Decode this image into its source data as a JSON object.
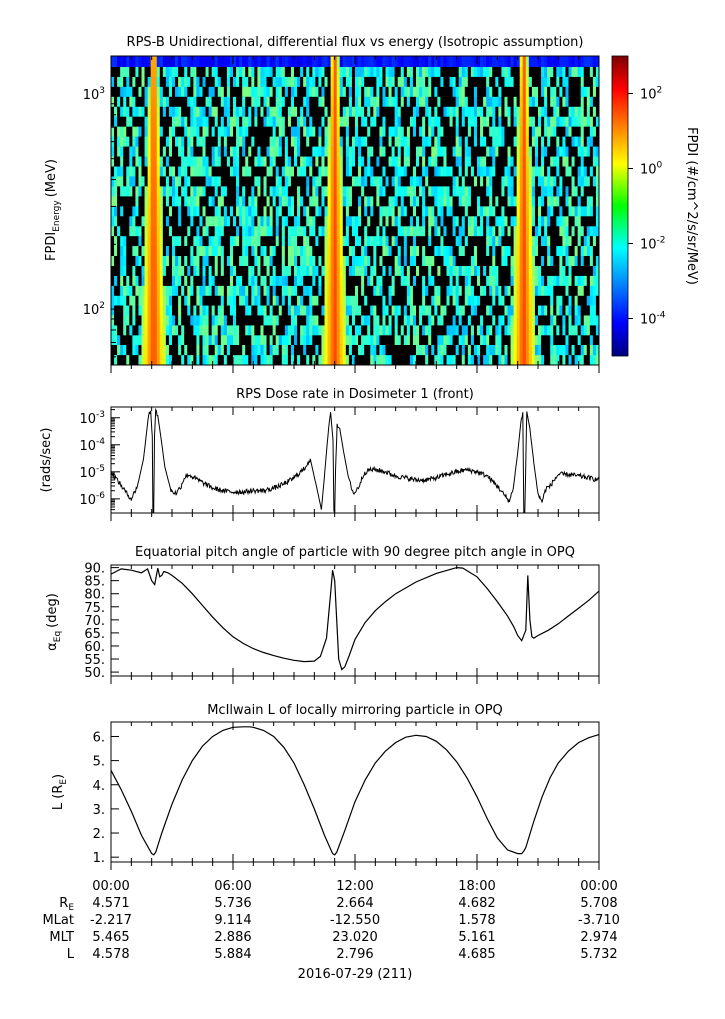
{
  "chart_data": [
    {
      "type": "heatmap",
      "title": "RPS-B  Unidirectional, differential flux vs energy (Isotropic assumption)",
      "ylabel_main": "FPDI",
      "ylabel_sub": "Energy",
      "ylabel_unit": "(MeV)",
      "y_scale": "log",
      "ylim": [
        55,
        1500
      ],
      "yticks": [
        {
          "value": 100,
          "base": "10",
          "exp": "2"
        },
        {
          "value": 1000,
          "base": "10",
          "exp": "3"
        }
      ],
      "colorbar": {
        "label": "FPDI (#/cm^2/s/sr/MeV)",
        "scale": "log",
        "range": [
          1e-05,
          1000.0
        ],
        "ticks": [
          {
            "value": 100,
            "base": "10",
            "exp": "2"
          },
          {
            "value": 1,
            "base": "10",
            "exp": "0"
          },
          {
            "value": 0.01,
            "base": "10",
            "exp": "-2"
          },
          {
            "value": 0.0001,
            "base": "10",
            "exp": "-4"
          }
        ]
      },
      "energy_channels_mev": [
        58,
        65,
        72,
        80,
        89,
        99,
        110,
        122,
        136,
        151,
        168,
        187,
        208,
        231,
        257,
        286,
        318,
        354,
        394,
        438,
        487,
        542,
        603,
        671,
        746,
        830,
        923,
        1027,
        1142,
        1270,
        1413
      ],
      "belt_crossings_hours": [
        2.1,
        11.0,
        20.3
      ],
      "belt_peak_log_flux": 1.5,
      "background_log_flux_range": [
        -2.6,
        -1.0
      ]
    },
    {
      "type": "line",
      "title": "RPS  Dose rate in Dosimeter 1 (front)",
      "ylabel": "(rads/sec)",
      "y_scale": "log",
      "ylim": [
        3e-07,
        0.0025
      ],
      "yticks": [
        {
          "value": 0.001,
          "base": "10",
          "exp": "-3"
        },
        {
          "value": 0.0001,
          "base": "10",
          "exp": "-4"
        },
        {
          "value": 1e-05,
          "base": "10",
          "exp": "-5"
        },
        {
          "value": 1e-06,
          "base": "10",
          "exp": "-6"
        }
      ],
      "series": [
        {
          "x_hours": [
            0,
            0.4,
            0.8,
            1.0,
            1.3,
            1.6,
            1.75,
            1.85,
            1.95,
            2.03,
            2.06,
            2.1,
            2.14,
            2.2,
            2.3,
            2.45,
            2.65,
            2.95,
            3.2,
            3.45,
            3.6,
            3.8,
            4.1,
            4.5,
            5.0,
            5.5,
            6.0,
            6.5,
            7.0,
            7.5,
            8.0,
            8.5,
            9.0,
            9.5,
            9.8,
            10.1,
            10.35,
            10.55,
            10.7,
            10.8,
            10.92,
            10.96,
            11.0,
            11.04,
            11.12,
            11.25,
            11.45,
            11.7,
            11.95,
            12.2,
            12.45,
            12.7,
            13.0,
            13.5,
            14.0,
            14.5,
            15.0,
            15.5,
            16.0,
            16.5,
            17.0,
            17.5,
            18.0,
            18.5,
            19.0,
            19.3,
            19.6,
            19.8,
            20.0,
            20.15,
            20.25,
            20.3,
            20.35,
            20.45,
            20.6,
            20.8,
            21.0,
            21.2,
            21.4,
            21.6,
            21.8,
            22.0,
            22.5,
            23.0,
            23.5,
            24.0
          ],
          "y": [
            1e-05,
            4e-06,
            1.5e-06,
            1e-06,
            3e-06,
            3e-05,
            0.0003,
            0.0013,
            0.0018,
            0.0002,
            3e-07,
            3e-07,
            0.0002,
            0.0018,
            0.0012,
            0.0002,
            1.5e-05,
            2e-06,
            1.6e-06,
            3e-06,
            6e-06,
            8e-06,
            6e-06,
            4e-06,
            2.5e-06,
            2e-06,
            1.8e-06,
            1.8e-06,
            2e-06,
            2e-06,
            2.5e-06,
            3.5e-06,
            6e-06,
            1.3e-05,
            3e-05,
            3e-06,
            4e-07,
            2e-05,
            0.0004,
            0.0016,
            0.00015,
            3e-07,
            3e-07,
            1e-05,
            0.0005,
            0.0004,
            5e-05,
            5e-06,
            1.5e-06,
            3e-06,
            9e-06,
            1.2e-05,
            1.2e-05,
            1e-05,
            7e-06,
            6e-06,
            5e-06,
            5e-06,
            6e-06,
            8e-06,
            1e-05,
            1.2e-05,
            1e-05,
            7e-06,
            3e-06,
            1.5e-06,
            8e-07,
            3e-06,
            5e-05,
            0.0006,
            0.0016,
            3e-07,
            3e-07,
            0.0017,
            0.0004,
            2e-05,
            1.5e-06,
            8e-07,
            2.5e-06,
            3e-06,
            5e-06,
            8e-06,
            8e-06,
            7e-06,
            6e-06,
            5e-06
          ]
        }
      ]
    },
    {
      "type": "line",
      "title": "Equatorial pitch angle of particle with 90 degree pitch angle in OPQ",
      "ylabel_main": "α",
      "ylabel_sub": "Eq",
      "ylabel_unit": "(deg)",
      "ylim": [
        48.5,
        91
      ],
      "yticks": [
        50,
        55,
        60,
        65,
        70,
        75,
        80,
        85,
        90
      ],
      "ytick_labels": [
        "50.",
        "55.",
        "60.",
        "65.",
        "70.",
        "75.",
        "80.",
        "85.",
        "90."
      ],
      "series": [
        {
          "x_hours": [
            0,
            0.5,
            1.0,
            1.5,
            1.8,
            2.0,
            2.15,
            2.3,
            2.4,
            2.5,
            2.6,
            2.8,
            3.0,
            3.5,
            4.0,
            4.5,
            5.0,
            5.5,
            6.0,
            6.5,
            7.0,
            7.5,
            8.0,
            8.5,
            9.0,
            9.5,
            10.0,
            10.3,
            10.6,
            10.8,
            10.9,
            11.0,
            11.1,
            11.2,
            11.35,
            11.5,
            11.7,
            12.0,
            12.5,
            13.0,
            13.5,
            14.0,
            15.0,
            16.0,
            17.0,
            17.3,
            18.0,
            18.5,
            19.0,
            19.5,
            19.8,
            20.0,
            20.2,
            20.4,
            20.5,
            20.6,
            20.7,
            20.8,
            21.0,
            21.5,
            22.0,
            22.5,
            23.0,
            23.5,
            24.0
          ],
          "y": [
            87.5,
            89.5,
            89.0,
            88.0,
            89.5,
            85.0,
            83.5,
            89.8,
            86.5,
            87.0,
            88.5,
            88.0,
            87.0,
            84.0,
            80.0,
            75.5,
            71.0,
            67.0,
            63.5,
            61.0,
            59.0,
            57.5,
            56.3,
            55.3,
            54.5,
            54.0,
            54.2,
            56.0,
            63.0,
            80.0,
            89.0,
            85.0,
            70.0,
            55.0,
            51.0,
            52.0,
            56.0,
            62.5,
            69.0,
            73.5,
            77.0,
            80.0,
            84.5,
            87.8,
            90.0,
            89.8,
            86.5,
            82.0,
            77.0,
            71.5,
            67.5,
            64.0,
            62.0,
            66.0,
            87.0,
            70.0,
            63.5,
            63.0,
            64.0,
            66.0,
            68.5,
            71.5,
            74.5,
            77.5,
            81.0
          ]
        }
      ]
    },
    {
      "type": "line",
      "title": "McIlwain L of locally mirroring particle in OPQ",
      "ylabel_main": "L (R",
      "ylabel_sub": "E",
      "ylabel_unit": ")",
      "ylim": [
        0.8,
        6.6
      ],
      "yticks": [
        1,
        2,
        3,
        4,
        5,
        6
      ],
      "ytick_labels": [
        "1.",
        "2.",
        "3.",
        "4.",
        "5.",
        "6."
      ],
      "series": [
        {
          "x_hours": [
            0,
            0.5,
            1.0,
            1.5,
            2.0,
            2.1,
            2.2,
            2.5,
            3.0,
            3.5,
            4.0,
            4.5,
            5.0,
            5.5,
            6.0,
            6.5,
            6.8,
            7.0,
            7.5,
            8.0,
            8.5,
            9.0,
            9.5,
            10.0,
            10.5,
            10.9,
            11.0,
            11.1,
            11.5,
            12.0,
            12.5,
            13.0,
            13.5,
            14.0,
            14.5,
            15.0,
            15.5,
            16.0,
            16.5,
            17.0,
            17.5,
            18.0,
            18.5,
            19.0,
            19.5,
            20.0,
            20.2,
            20.3,
            20.4,
            20.8,
            21.2,
            21.6,
            22.0,
            22.5,
            23.0,
            23.5,
            24.0
          ],
          "y": [
            4.6,
            3.8,
            2.9,
            1.9,
            1.15,
            1.1,
            1.2,
            2.0,
            3.2,
            4.2,
            5.0,
            5.6,
            6.0,
            6.25,
            6.38,
            6.4,
            6.4,
            6.38,
            6.25,
            6.0,
            5.55,
            4.9,
            4.0,
            3.0,
            1.9,
            1.15,
            1.1,
            1.2,
            2.1,
            3.3,
            4.2,
            4.9,
            5.4,
            5.75,
            5.97,
            6.05,
            6.0,
            5.8,
            5.45,
            4.95,
            4.3,
            3.5,
            2.6,
            1.8,
            1.3,
            1.15,
            1.15,
            1.25,
            1.4,
            2.5,
            3.5,
            4.3,
            4.9,
            5.4,
            5.75,
            5.95,
            6.08
          ]
        }
      ]
    }
  ],
  "time_axis": {
    "tick_labels": [
      "00:00",
      "06:00",
      "12:00",
      "18:00",
      "00:00"
    ],
    "tick_hours": [
      0,
      6,
      12,
      18,
      24
    ],
    "minor_tick_interval_hours": 1,
    "row_labels": [
      {
        "main": "R",
        "sub": "E"
      },
      {
        "main": "MLat",
        "sub": ""
      },
      {
        "main": "MLT",
        "sub": ""
      },
      {
        "main": "L",
        "sub": ""
      }
    ],
    "rows": [
      [
        "4.571",
        "5.736",
        "2.664",
        "4.682",
        "5.708"
      ],
      [
        "-2.217",
        "9.114",
        "-12.550",
        "1.578",
        "-3.710"
      ],
      [
        "5.465",
        "2.886",
        "23.020",
        "5.161",
        "2.974"
      ],
      [
        "4.578",
        "5.884",
        "2.796",
        "4.685",
        "5.732"
      ]
    ],
    "date_label": "2016-07-29 (211)"
  }
}
